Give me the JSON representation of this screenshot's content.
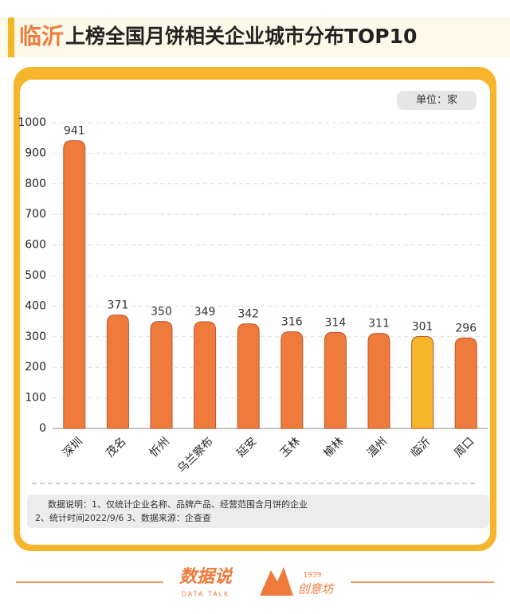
{
  "chart_data": {
    "type": "bar",
    "title_highlight": "临沂",
    "title": "上榜全国月饼相关企业城市分布TOP10",
    "unit": "单位：家",
    "categories": [
      "深圳",
      "茂名",
      "忻州",
      "乌兰察布",
      "延安",
      "玉林",
      "榆林",
      "温州",
      "临沂",
      "周口"
    ],
    "values": [
      941,
      371,
      350,
      349,
      342,
      316,
      314,
      311,
      301,
      296
    ],
    "colors": [
      "#ee7b3c",
      "#ee7b3c",
      "#ee7b3c",
      "#ee7b3c",
      "#ee7b3c",
      "#ee7b3c",
      "#ee7b3c",
      "#ee7b3c",
      "#f7b52c",
      "#ee7b3c"
    ],
    "ylim": [
      0,
      1000
    ],
    "yticks": [
      0,
      100,
      200,
      300,
      400,
      500,
      600,
      700,
      800,
      900,
      1000
    ],
    "grid": true,
    "notes": [
      "数据说明：1、仅统计企业名称、品牌产品、经营范围含月饼的企业",
      "2、统计时间2022/9/6    3、数据来源：企查查"
    ]
  },
  "footer": {
    "brand": "数据说",
    "brand_sub": "DATA TALK",
    "partner_year": "1939",
    "partner": "创意坊"
  }
}
